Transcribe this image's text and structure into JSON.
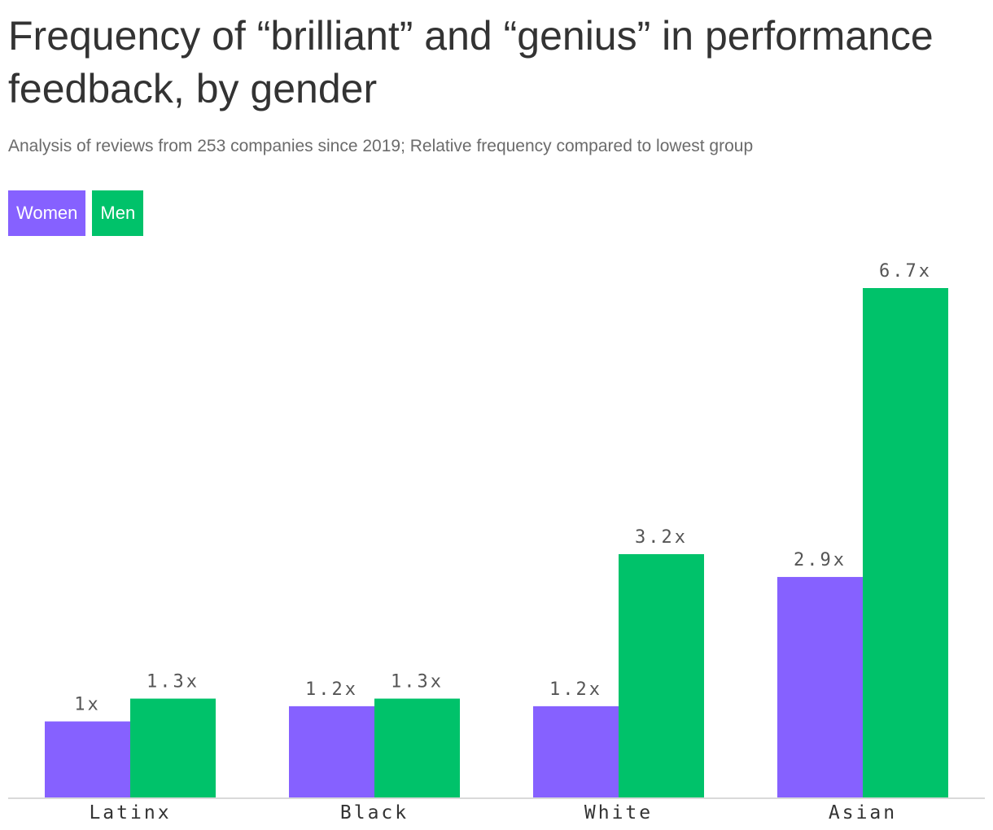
{
  "header": {
    "title": "Frequency of “brilliant” and “genius” in performance feedback, by gender",
    "subtitle": "Analysis of reviews from 253 companies since 2019; Relative frequency compared to lowest group"
  },
  "legend": [
    {
      "label": "Women",
      "color": "#8661ff"
    },
    {
      "label": "Men",
      "color": "#00c26a"
    }
  ],
  "chart_data": {
    "type": "bar",
    "categories": [
      "Latinx",
      "Black",
      "White",
      "Asian"
    ],
    "series": [
      {
        "name": "Women",
        "color": "#8661ff",
        "values": [
          1,
          1.2,
          1.2,
          2.9
        ],
        "labels": [
          "1x",
          "1.2x",
          "1.2x",
          "2.9x"
        ]
      },
      {
        "name": "Men",
        "color": "#00c26a",
        "values": [
          1.3,
          1.3,
          3.2,
          6.7
        ],
        "labels": [
          "1.3x",
          "1.3x",
          "3.2x",
          "6.7x"
        ]
      }
    ],
    "title": "Frequency of “brilliant” and “genius” in performance feedback, by gender",
    "xlabel": "",
    "ylabel": "",
    "ylim": [
      0,
      6.7
    ],
    "grid": false,
    "legend_position": "top-left"
  }
}
